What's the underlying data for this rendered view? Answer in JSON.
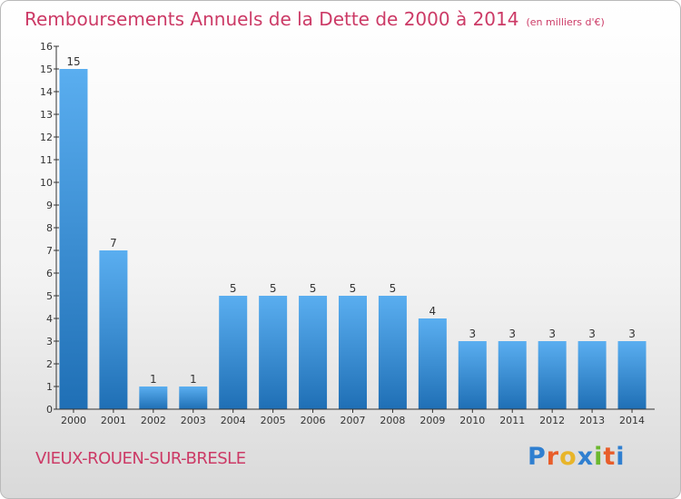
{
  "chart_data": {
    "type": "bar",
    "title": "Remboursements Annuels de la Dette de 2000 à 2014",
    "subtitle": "(en milliers d'€)",
    "categories": [
      "2000",
      "2001",
      "2002",
      "2003",
      "2004",
      "2005",
      "2006",
      "2007",
      "2008",
      "2009",
      "2010",
      "2011",
      "2012",
      "2013",
      "2014"
    ],
    "values": [
      15,
      7,
      1,
      1,
      5,
      5,
      5,
      5,
      5,
      4,
      3,
      3,
      3,
      3,
      3
    ],
    "ylim": [
      0,
      16
    ],
    "yticks": [
      0,
      1,
      2,
      3,
      4,
      5,
      6,
      7,
      8,
      9,
      10,
      11,
      12,
      13,
      14,
      15,
      16
    ],
    "xlabel": "",
    "ylabel": "",
    "grid": false,
    "bar_color": "#3a8fd8"
  },
  "footer": {
    "commune": "VIEUX-ROUEN-SUR-BRESLE",
    "logo_letters": [
      "P",
      "r",
      "o",
      "x",
      "i",
      "t",
      "i"
    ],
    "logo_colors": [
      "#2f7fd0",
      "#e85d2a",
      "#e8b52a",
      "#2f7fd0",
      "#6bb82e",
      "#e85d2a",
      "#2f7fd0"
    ]
  },
  "colors": {
    "title": "#cc3a66",
    "axis": "#333333"
  }
}
